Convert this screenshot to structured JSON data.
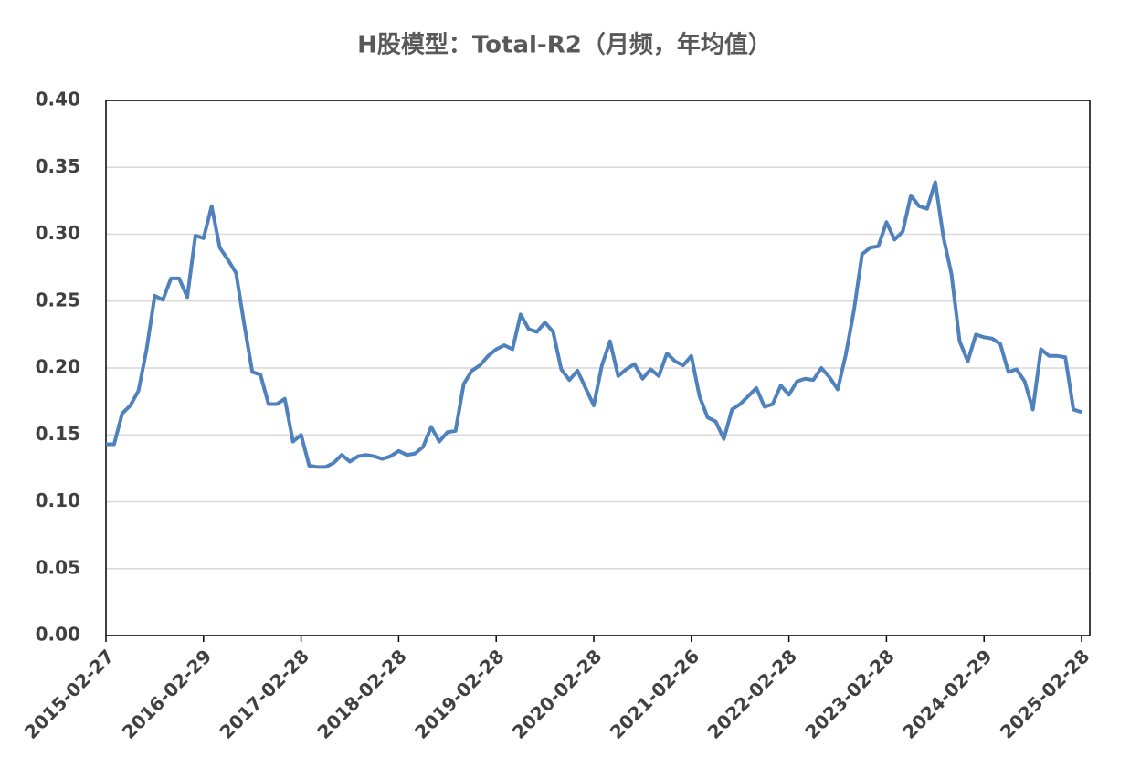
{
  "chart_data": {
    "type": "line",
    "title": "H股模型：Total-R2（月频，年均值）",
    "categories": [
      "2015-02-27",
      null,
      null,
      null,
      null,
      null,
      null,
      null,
      null,
      null,
      null,
      null,
      "2016-02-29",
      null,
      null,
      null,
      null,
      null,
      null,
      null,
      null,
      null,
      null,
      null,
      "2017-02-28",
      null,
      null,
      null,
      null,
      null,
      null,
      null,
      null,
      null,
      null,
      null,
      "2018-02-28",
      null,
      null,
      null,
      null,
      null,
      null,
      null,
      null,
      null,
      null,
      null,
      "2019-02-28",
      null,
      null,
      null,
      null,
      null,
      null,
      null,
      null,
      null,
      null,
      null,
      "2020-02-28",
      null,
      null,
      null,
      null,
      null,
      null,
      null,
      null,
      null,
      null,
      null,
      "2021-02-26",
      null,
      null,
      null,
      null,
      null,
      null,
      null,
      null,
      null,
      null,
      null,
      "2022-02-28",
      null,
      null,
      null,
      null,
      null,
      null,
      null,
      null,
      null,
      null,
      null,
      "2023-02-28",
      null,
      null,
      null,
      null,
      null,
      null,
      null,
      null,
      null,
      null,
      null,
      "2024-02-29",
      null,
      null,
      null,
      null,
      null,
      null,
      null,
      null,
      null,
      null,
      null,
      "2025-02-28"
    ],
    "values": [
      0.143,
      0.143,
      0.166,
      0.172,
      0.183,
      0.214,
      0.254,
      0.251,
      0.267,
      0.267,
      0.253,
      0.299,
      0.297,
      0.321,
      0.29,
      0.281,
      0.271,
      0.233,
      0.197,
      0.195,
      0.173,
      0.173,
      0.177,
      0.145,
      0.15,
      0.127,
      0.126,
      0.126,
      0.129,
      0.135,
      0.13,
      0.134,
      0.135,
      0.134,
      0.132,
      0.134,
      0.138,
      0.135,
      0.136,
      0.141,
      0.156,
      0.145,
      0.152,
      0.153,
      0.188,
      0.198,
      0.202,
      0.209,
      0.214,
      0.217,
      0.214,
      0.24,
      0.229,
      0.227,
      0.234,
      0.227,
      0.199,
      0.191,
      0.198,
      0.185,
      0.172,
      0.202,
      0.22,
      0.194,
      0.199,
      0.203,
      0.192,
      0.199,
      0.194,
      0.211,
      0.205,
      0.202,
      0.209,
      0.179,
      0.163,
      0.16,
      0.147,
      0.169,
      0.173,
      0.179,
      0.185,
      0.171,
      0.173,
      0.187,
      0.18,
      0.19,
      0.192,
      0.191,
      0.2,
      0.193,
      0.184,
      0.21,
      0.243,
      0.285,
      0.29,
      0.291,
      0.309,
      0.296,
      0.302,
      0.329,
      0.321,
      0.319,
      0.339,
      0.298,
      0.27,
      0.22,
      0.205,
      0.225,
      0.223,
      0.222,
      0.218,
      0.197,
      0.199,
      0.19,
      0.169,
      0.214,
      0.209,
      0.209,
      0.208,
      0.169,
      0.167
    ],
    "color": "#4f81bd",
    "ylim": [
      0,
      0.4
    ],
    "yticks": [
      {
        "value": 0,
        "label": "0.00"
      },
      {
        "value": 0.05,
        "label": "0.05"
      },
      {
        "value": 0.1,
        "label": "0.10"
      },
      {
        "value": 0.15,
        "label": "0.15"
      },
      {
        "value": 0.2,
        "label": "0.20"
      },
      {
        "value": 0.25,
        "label": "0.25"
      },
      {
        "value": 0.3,
        "label": "0.30"
      },
      {
        "value": 0.35,
        "label": "0.35"
      },
      {
        "value": 0.4,
        "label": "0.40"
      }
    ],
    "grid": true
  }
}
